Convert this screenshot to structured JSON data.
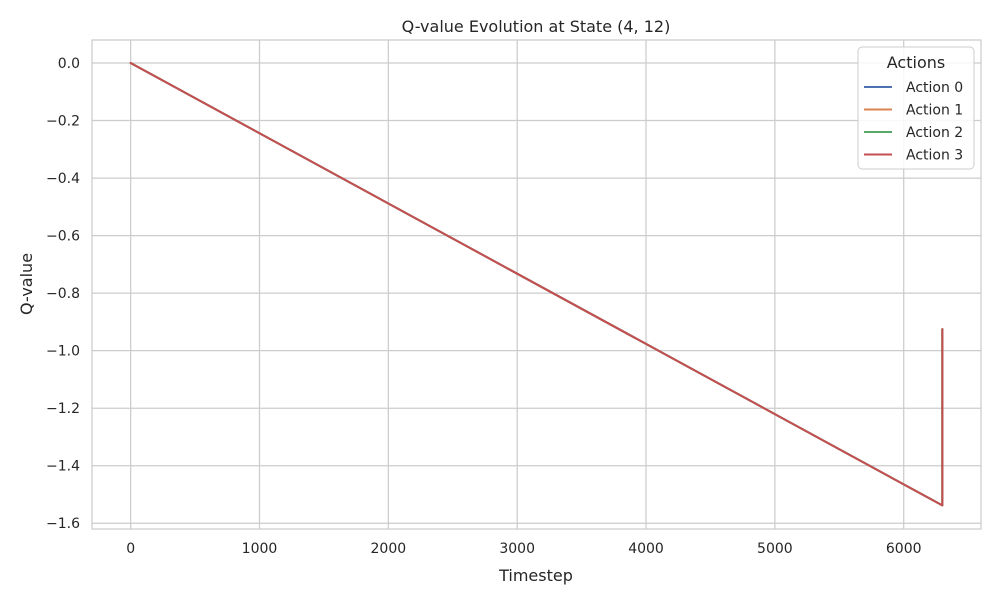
{
  "chart_data": {
    "type": "line",
    "title": "Q-value Evolution at State (4, 12)",
    "xlabel": "Timestep",
    "ylabel": "Q-value",
    "xlim": [
      -300,
      6600
    ],
    "ylim": [
      -1.62,
      0.08
    ],
    "xticks": [
      0,
      1000,
      2000,
      3000,
      4000,
      5000,
      6000
    ],
    "xtick_labels": [
      "0",
      "1000",
      "2000",
      "3000",
      "4000",
      "5000",
      "6000"
    ],
    "yticks": [
      0.0,
      -0.2,
      -0.4,
      -0.6,
      -0.8,
      -1.0,
      -1.2,
      -1.4,
      -1.6
    ],
    "ytick_labels": [
      "0.0",
      "−0.2",
      "−0.4",
      "−0.6",
      "−0.8",
      "−1.0",
      "−1.2",
      "−1.4",
      "−1.6"
    ],
    "grid": true,
    "legend": {
      "title": "Actions",
      "position": "top-right"
    },
    "series": [
      {
        "name": "Action 0",
        "color": "#4c72b0",
        "x": [
          0,
          6300,
          6300
        ],
        "y": [
          0.0,
          -1.538,
          -0.925
        ]
      },
      {
        "name": "Action 1",
        "color": "#dd8452",
        "x": [
          0,
          6300,
          6300
        ],
        "y": [
          0.0,
          -1.538,
          -0.925
        ]
      },
      {
        "name": "Action 2",
        "color": "#55a868",
        "x": [
          0,
          6300,
          6300
        ],
        "y": [
          0.0,
          -1.538,
          -0.925
        ]
      },
      {
        "name": "Action 3",
        "color": "#c44e52",
        "x": [
          0,
          6300,
          6300
        ],
        "y": [
          0.0,
          -1.538,
          -0.925
        ]
      }
    ]
  }
}
